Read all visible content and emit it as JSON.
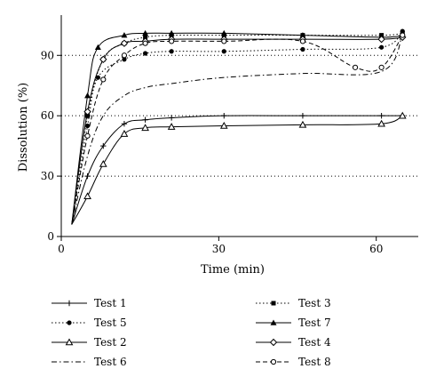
{
  "chart_data": {
    "type": "line",
    "title": "",
    "xlabel": "Time (min)",
    "ylabel": "Dissolution (%)",
    "xlim": [
      0,
      68
    ],
    "ylim": [
      0,
      110
    ],
    "xticks": [
      0,
      30,
      60
    ],
    "yticks": [
      0,
      30,
      60,
      90
    ],
    "xtick_labels": [
      "0",
      "30",
      "60"
    ],
    "ytick_labels": [
      "0",
      "30",
      "60",
      "90"
    ],
    "grid": "horizontal dotted at 30, 60, 90",
    "legend_position": "bottom",
    "series": [
      {
        "name": "Test 1",
        "marker": "plus",
        "dash": "solid",
        "x": [
          2,
          5,
          8,
          12,
          16,
          21,
          31,
          46,
          61,
          65
        ],
        "y": [
          6,
          30,
          45,
          56,
          58,
          59,
          60,
          60,
          60,
          60
        ]
      },
      {
        "name": "Test 3",
        "marker": "square",
        "dash": "dotted",
        "x": [
          2,
          5,
          8,
          12,
          16,
          21,
          31,
          46,
          61,
          65
        ],
        "y": [
          6,
          60,
          88,
          96,
          99,
          100,
          100,
          100,
          100,
          101
        ]
      },
      {
        "name": "Test 5",
        "marker": "circle",
        "dash": "dotted",
        "x": [
          2,
          5,
          7,
          12,
          16,
          21,
          31,
          46,
          61,
          65
        ],
        "y": [
          6,
          55,
          79,
          88,
          91,
          92,
          92,
          93,
          94,
          102
        ]
      },
      {
        "name": "Test 7",
        "marker": "triangle",
        "dash": "solid",
        "x": [
          2,
          5,
          7,
          12,
          16,
          21,
          31,
          46,
          61,
          65
        ],
        "y": [
          6,
          70,
          94,
          100,
          101,
          101,
          101,
          100,
          99,
          100
        ]
      },
      {
        "name": "Test 2",
        "marker": "triangle-open",
        "dash": "solid",
        "x": [
          2,
          5,
          8,
          12,
          16,
          21,
          31,
          46,
          61,
          65
        ],
        "y": [
          6,
          20,
          36,
          51,
          54,
          54.5,
          55,
          55.5,
          56,
          60
        ]
      },
      {
        "name": "Test 4",
        "marker": "diamond-open",
        "dash": "solid",
        "x": [
          2,
          5,
          8,
          12,
          16,
          21,
          31,
          46,
          61,
          65
        ],
        "y": [
          6,
          62,
          88,
          96,
          97,
          98,
          98,
          98,
          98,
          99
        ]
      },
      {
        "name": "Test 6",
        "marker": "none",
        "dash": "dashdot",
        "x": [
          2,
          5,
          8,
          12,
          16,
          21,
          31,
          46,
          61,
          65
        ],
        "y": [
          6,
          40,
          60,
          70,
          74,
          76,
          79,
          81,
          82,
          100
        ]
      },
      {
        "name": "Test 8",
        "marker": "circle-open",
        "dash": "dashed",
        "x": [
          2,
          5,
          8,
          12,
          16,
          21,
          31,
          46,
          56,
          61,
          65
        ],
        "y": [
          6,
          50,
          78,
          90,
          96,
          97,
          97,
          97,
          84,
          84,
          100
        ]
      }
    ],
    "legend": [
      [
        "Test 1",
        "Test 3"
      ],
      [
        "Test 5",
        "Test 7"
      ],
      [
        "Test 2",
        "Test 4"
      ],
      [
        "Test 6",
        "Test 8"
      ]
    ]
  }
}
